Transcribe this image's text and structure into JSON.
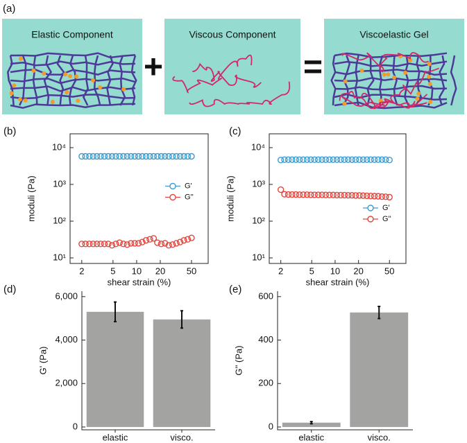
{
  "diagram": {
    "panel_label": "(a)",
    "boxes": [
      "Elastic Component",
      "Viscous Component",
      "Viscoelastic Gel"
    ],
    "operators": [
      "+",
      "="
    ]
  },
  "chart_data": [
    {
      "type": "scatter",
      "panel_label": "(b)",
      "x_label": "shear strain (%)",
      "y_label": "moduli (Pa)",
      "x": [
        2.0,
        2.23,
        2.5,
        2.79,
        3.12,
        3.48,
        3.89,
        4.35,
        4.86,
        5.43,
        6.06,
        6.78,
        7.57,
        8.46,
        9.45,
        10.56,
        11.8,
        13.18,
        14.73,
        16.46,
        18.39,
        20.55,
        22.96,
        25.66,
        28.67,
        32.04,
        35.8,
        40.0,
        44.7,
        50.0
      ],
      "series": [
        {
          "name": "G'",
          "color": "#3b9bd1",
          "values": [
            5800,
            5800,
            5800,
            5800,
            5800,
            5800,
            5800,
            5800,
            5800,
            5800,
            5800,
            5800,
            5800,
            5800,
            5800,
            5800,
            5800,
            5800,
            5800,
            5800,
            5800,
            5800,
            5800,
            5800,
            5800,
            5800,
            5800,
            5800,
            5800,
            5800
          ]
        },
        {
          "name": "G''",
          "color": "#e2453d",
          "values": [
            24,
            24,
            24,
            24,
            24,
            24,
            24,
            24,
            22,
            24,
            26,
            24,
            23,
            25,
            25,
            25,
            27,
            30,
            32,
            34,
            26,
            24,
            25,
            22,
            23,
            25,
            27,
            30,
            32,
            35
          ]
        }
      ],
      "xlim": [
        1.42,
        81.5
      ],
      "ylim": [
        7.07,
        23800
      ],
      "xticks": [
        2,
        5,
        10,
        20,
        50
      ],
      "yticks": [
        {
          "value": 10,
          "label": "10¹"
        },
        {
          "value": 100,
          "label": "10²"
        },
        {
          "value": 1000,
          "label": "10³"
        },
        {
          "value": 10000,
          "label": "10⁴"
        }
      ],
      "x_log": true,
      "y_log": true,
      "legend": "center right"
    },
    {
      "type": "scatter",
      "panel_label": "(c)",
      "x_label": "shear strain (%)",
      "y_label": "moduli (Pa)",
      "x": [
        2.0,
        2.23,
        2.5,
        2.79,
        3.12,
        3.48,
        3.89,
        4.35,
        4.86,
        5.43,
        6.06,
        6.78,
        7.57,
        8.46,
        9.45,
        10.56,
        11.8,
        13.18,
        14.73,
        16.46,
        18.39,
        20.55,
        22.96,
        25.66,
        28.67,
        32.04,
        35.8,
        40.0,
        44.7,
        50.0
      ],
      "series": [
        {
          "name": "G'",
          "color": "#3b9bd1",
          "values": [
            4600,
            4700,
            4700,
            4700,
            4700,
            4700,
            4700,
            4700,
            4700,
            4700,
            4700,
            4700,
            4700,
            4700,
            4700,
            4700,
            4700,
            4700,
            4700,
            4700,
            4700,
            4700,
            4700,
            4700,
            4700,
            4700,
            4700,
            4700,
            4700,
            4600
          ]
        },
        {
          "name": "G''",
          "color": "#e2453d",
          "values": [
            720,
            540,
            530,
            530,
            530,
            525,
            525,
            525,
            520,
            520,
            520,
            520,
            515,
            515,
            515,
            510,
            510,
            510,
            505,
            505,
            500,
            500,
            495,
            490,
            485,
            480,
            475,
            465,
            460,
            450
          ]
        }
      ],
      "xlim": [
        1.42,
        81.5
      ],
      "ylim": [
        7.07,
        23800
      ],
      "xticks": [
        2,
        5,
        10,
        20,
        50
      ],
      "yticks": [
        {
          "value": 10,
          "label": "10¹"
        },
        {
          "value": 100,
          "label": "10²"
        },
        {
          "value": 1000,
          "label": "10³"
        },
        {
          "value": 10000,
          "label": "10⁴"
        }
      ],
      "x_log": true,
      "y_log": true,
      "legend": "lower right"
    },
    {
      "type": "bar",
      "panel_label": "(d)",
      "y_label": "G' (Pa)",
      "categories": [
        "elastic",
        "visco."
      ],
      "values": [
        5300,
        4950
      ],
      "errors": [
        450,
        400
      ],
      "color": "#a3a3a1",
      "ylim": [
        -130,
        6250
      ],
      "yticks": [
        0,
        {
          "value": 2000,
          "label": "2,000"
        },
        {
          "value": 4000,
          "label": "4,000"
        },
        {
          "value": 6000,
          "label": "6,000"
        }
      ]
    },
    {
      "type": "bar",
      "panel_label": "(e)",
      "y_label": "G'' (Pa)",
      "categories": [
        "elastic",
        "visco."
      ],
      "values": [
        20,
        527
      ],
      "errors": [
        5,
        28
      ],
      "color": "#a3a3a1",
      "ylim": [
        -13,
        625
      ],
      "yticks": [
        0,
        200,
        400,
        600
      ]
    }
  ]
}
